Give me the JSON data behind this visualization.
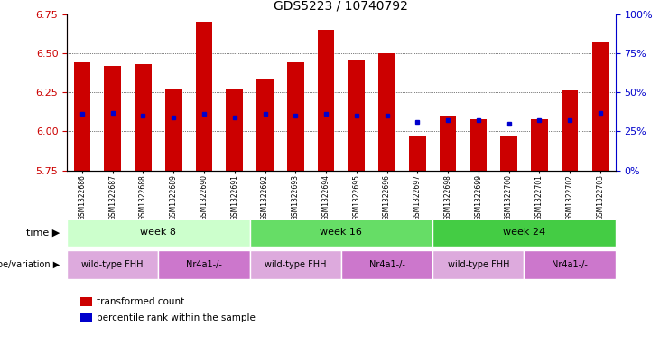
{
  "title": "GDS5223 / 10740792",
  "samples": [
    "GSM1322686",
    "GSM1322687",
    "GSM1322688",
    "GSM1322689",
    "GSM1322690",
    "GSM1322691",
    "GSM1322692",
    "GSM1322693",
    "GSM1322694",
    "GSM1322695",
    "GSM1322696",
    "GSM1322697",
    "GSM1322698",
    "GSM1322699",
    "GSM1322700",
    "GSM1322701",
    "GSM1322702",
    "GSM1322703"
  ],
  "bar_values": [
    6.44,
    6.42,
    6.43,
    6.27,
    6.7,
    6.27,
    6.33,
    6.44,
    6.65,
    6.46,
    6.5,
    5.97,
    6.1,
    6.08,
    5.97,
    6.08,
    6.26,
    6.57
  ],
  "percentile_values": [
    6.11,
    6.12,
    6.1,
    6.09,
    6.11,
    6.09,
    6.11,
    6.1,
    6.11,
    6.1,
    6.1,
    6.06,
    6.07,
    6.07,
    6.05,
    6.07,
    6.07,
    6.12
  ],
  "y_min": 5.75,
  "y_max": 6.75,
  "y_ticks": [
    5.75,
    6.0,
    6.25,
    6.5,
    6.75
  ],
  "y2_ticks": [
    0,
    25,
    50,
    75,
    100
  ],
  "bar_color": "#cc0000",
  "marker_color": "#0000cc",
  "bg_color": "#ffffff",
  "time_bands": [
    {
      "label": "week 8",
      "start": 0,
      "end": 6,
      "color": "#ccffcc"
    },
    {
      "label": "week 16",
      "start": 6,
      "end": 12,
      "color": "#66dd66"
    },
    {
      "label": "week 24",
      "start": 12,
      "end": 18,
      "color": "#44cc44"
    }
  ],
  "geno_bands": [
    {
      "label": "wild-type FHH",
      "start": 0,
      "end": 3,
      "color": "#ddaadd"
    },
    {
      "label": "Nr4a1-/-",
      "start": 3,
      "end": 6,
      "color": "#cc77cc"
    },
    {
      "label": "wild-type FHH",
      "start": 6,
      "end": 9,
      "color": "#ddaadd"
    },
    {
      "label": "Nr4a1-/-",
      "start": 9,
      "end": 12,
      "color": "#cc77cc"
    },
    {
      "label": "wild-type FHH",
      "start": 12,
      "end": 15,
      "color": "#ddaadd"
    },
    {
      "label": "Nr4a1-/-",
      "start": 15,
      "end": 18,
      "color": "#cc77cc"
    }
  ],
  "time_label": "time",
  "geno_label": "genotype/variation",
  "legend_items": [
    {
      "label": "transformed count",
      "color": "#cc0000"
    },
    {
      "label": "percentile rank within the sample",
      "color": "#0000cc"
    }
  ]
}
